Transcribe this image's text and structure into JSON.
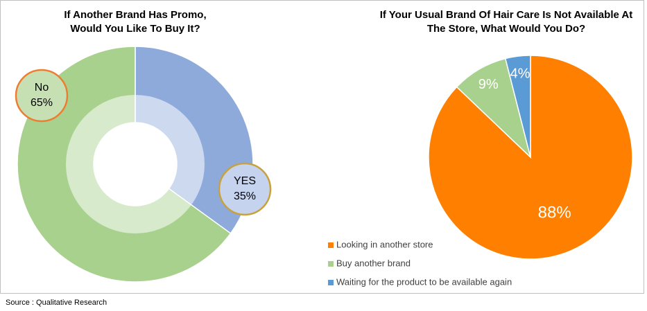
{
  "chart_data": [
    {
      "type": "donut",
      "title": "If Another Brand Has Promo, Would You Like To Buy It?",
      "categories": [
        "YES",
        "No"
      ],
      "values": [
        35,
        65
      ],
      "value_labels": [
        "35%",
        "65%"
      ],
      "colors": [
        "#8eaadb",
        "#a9d18e"
      ]
    },
    {
      "type": "pie",
      "title": "If Your Usual Brand Of Hair Care Is Not Available At The Store, What Would You Do?",
      "categories": [
        "Looking in another store",
        "Buy another brand",
        "Waiting for the product to be available again"
      ],
      "values": [
        88,
        9,
        4
      ],
      "value_labels": [
        "88%",
        "9%",
        "4%"
      ],
      "colors": [
        "#ff8000",
        "#a9d18e",
        "#5b9bd5"
      ],
      "legend": "bottom-left"
    }
  ],
  "source": "Source : Qualitative Research"
}
